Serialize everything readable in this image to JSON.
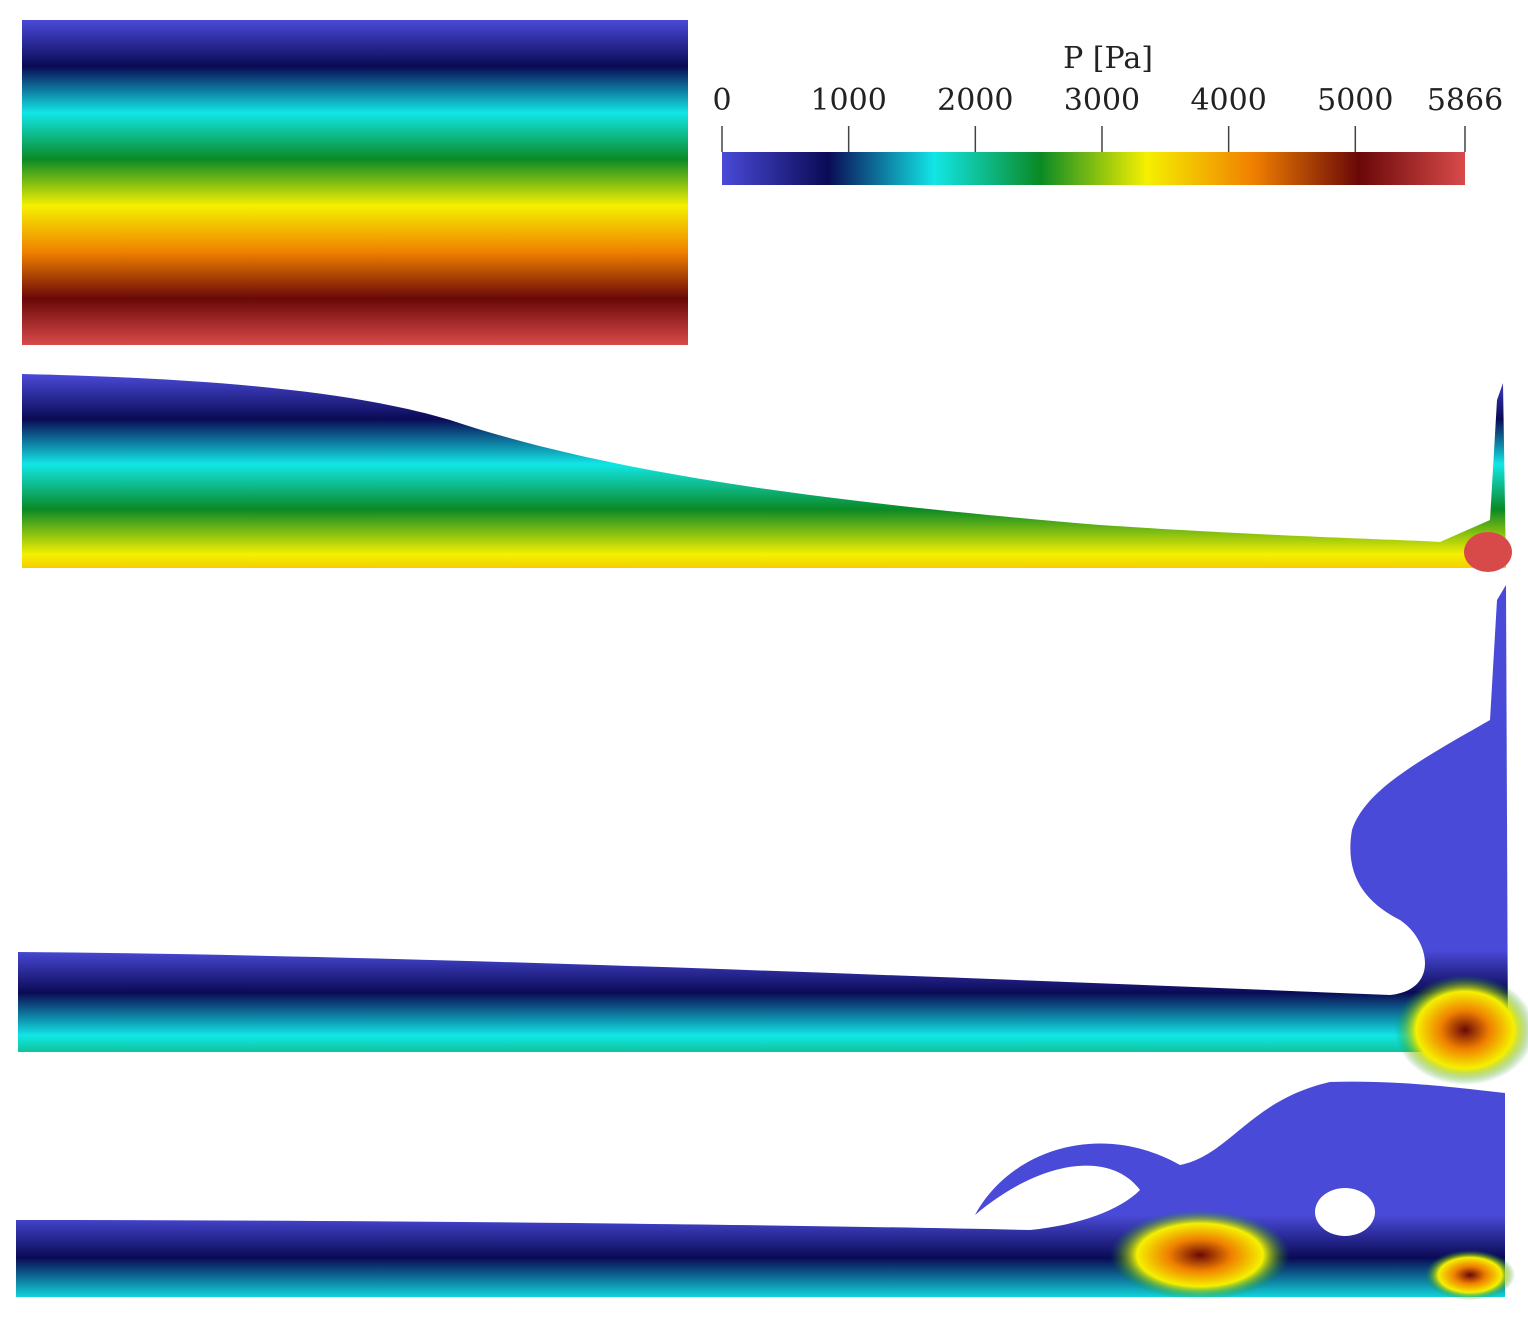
{
  "chart_data": {
    "type": "colorbar",
    "title": "P [Pa]",
    "lim": [
      0,
      5866
    ],
    "ticks": [
      0,
      1000,
      2000,
      3000,
      4000,
      5000,
      5866
    ],
    "colormap": [
      "#4a4ad8",
      "#0a0a55",
      "#12e6e6",
      "#0a8a25",
      "#f5f000",
      "#f08000",
      "#6a0808",
      "#d84a4a"
    ]
  }
}
